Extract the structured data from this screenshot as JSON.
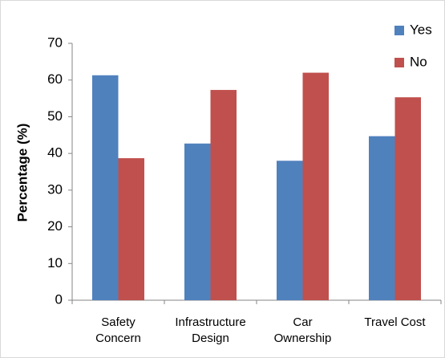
{
  "chart_data": {
    "type": "bar",
    "y_label": "Percentage (%)",
    "categories": [
      "Safety\nConcern",
      "Infrastructure\nDesign",
      "Car\nOwnership",
      "Travel Cost"
    ],
    "series": [
      {
        "name": "Yes",
        "color": "#4f81bd",
        "values": [
          61.3,
          42.7,
          38,
          44.7
        ]
      },
      {
        "name": "No",
        "color": "#c0504d",
        "values": [
          38.7,
          57.3,
          62,
          55.3
        ]
      }
    ],
    "ylim": [
      0,
      70
    ],
    "yticks": [
      0,
      10,
      20,
      30,
      40,
      50,
      60,
      70
    ],
    "grid": false,
    "legend": "top-right"
  }
}
